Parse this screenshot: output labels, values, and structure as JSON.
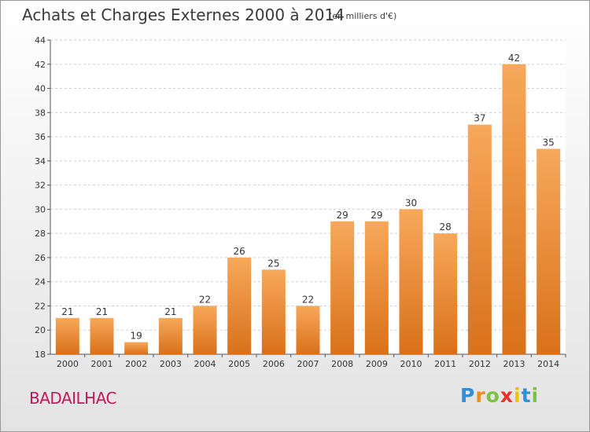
{
  "chart_data": {
    "type": "bar",
    "title": "Achats et Charges Externes 2000 à 2014",
    "subtitle": "(en milliers d'€)",
    "categories": [
      "2000",
      "2001",
      "2002",
      "2003",
      "2004",
      "2005",
      "2006",
      "2007",
      "2008",
      "2009",
      "2010",
      "2011",
      "2012",
      "2013",
      "2014"
    ],
    "values": [
      21,
      21,
      19,
      21,
      22,
      26,
      25,
      22,
      29,
      29,
      30,
      28,
      37,
      42,
      35
    ],
    "ylim": [
      18,
      44
    ],
    "yticks": [
      18,
      20,
      22,
      24,
      26,
      28,
      30,
      32,
      34,
      36,
      38,
      40,
      42,
      44
    ],
    "grid": true,
    "bar_color_top": "#f7a85a",
    "bar_color_bottom": "#d9711a"
  },
  "commune": "BADAILHAC",
  "logo": {
    "letters": [
      "P",
      "r",
      "o",
      "x",
      "i",
      "t",
      "i"
    ],
    "colors": [
      "#2f8fd8",
      "#f08c1a",
      "#7cc242",
      "#e8312a",
      "#f2c200",
      "#2f8fd8",
      "#7cc242"
    ]
  }
}
